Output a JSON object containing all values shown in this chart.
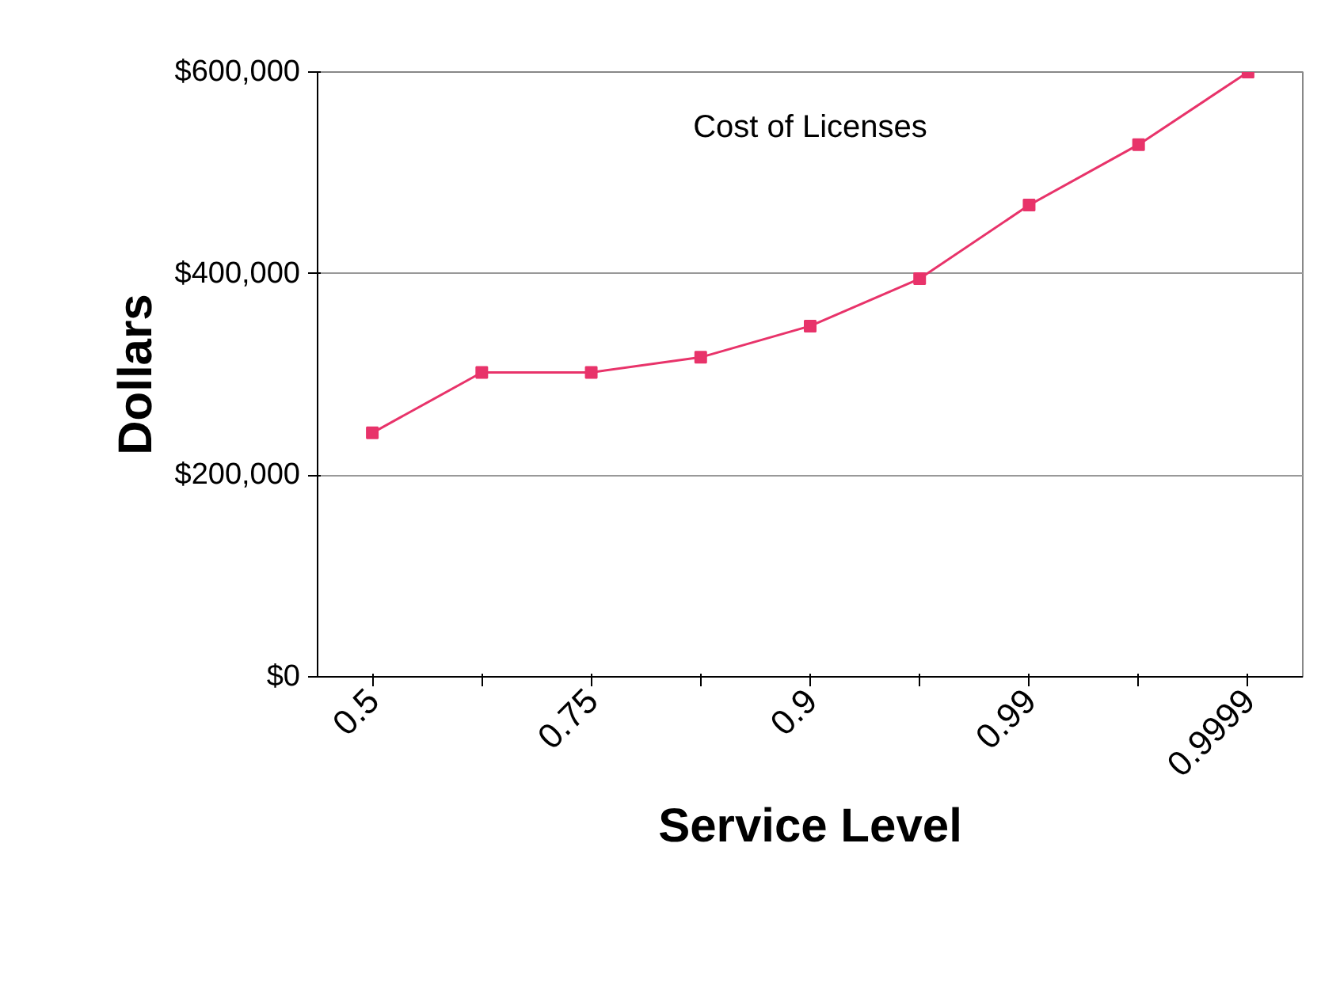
{
  "chart_data": {
    "type": "line",
    "xlabel": "Service Level",
    "ylabel": "Dollars",
    "categories": [
      "0.5",
      null,
      "0.75",
      null,
      "0.9",
      null,
      "0.99",
      null,
      "0.9999"
    ],
    "series": [
      {
        "color": "#e8336a",
        "values": [
          242000,
          302000,
          302000,
          317000,
          348000,
          395000,
          468000,
          528000,
          600000
        ]
      }
    ],
    "ylim": [
      0,
      600000
    ],
    "yticks": [
      {
        "value": 0,
        "label": "$0"
      },
      {
        "value": 200000,
        "label": "$200,000"
      },
      {
        "value": 400000,
        "label": "$400,000"
      },
      {
        "value": 600000,
        "label": "$600,000"
      }
    ],
    "grid": "y",
    "marker": "square",
    "line_style": "solid",
    "annotations": [
      "Cost of Licenses"
    ]
  }
}
